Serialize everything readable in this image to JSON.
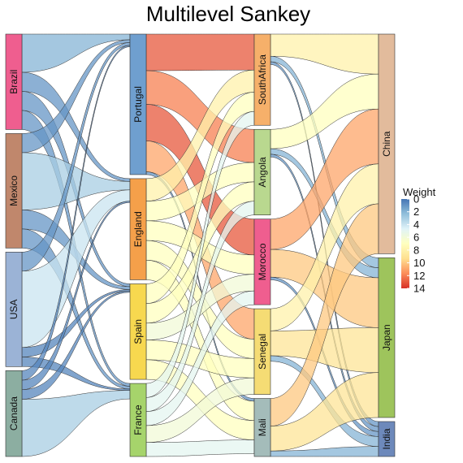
{
  "chart_data": {
    "type": "sankey",
    "title": "Multilevel Sankey",
    "legend": {
      "title": "Weight",
      "ticks": [
        "0",
        "2",
        "4",
        "6",
        "8",
        "10",
        "12",
        "14"
      ],
      "range": [
        0,
        14
      ],
      "colors": [
        "#4575b4",
        "#91bfdb",
        "#e0f3f8",
        "#ffffbf",
        "#fee090",
        "#fc8d59",
        "#d73027"
      ],
      "placement": "right"
    },
    "levels": [
      [
        "Brazil",
        "Mexico",
        "USA",
        "Canada"
      ],
      [
        "Portugal",
        "England",
        "Spain",
        "France"
      ],
      [
        "SouthAfrica",
        "Angola",
        "Morocco",
        "Senegal",
        "Mali"
      ],
      [
        "China",
        "Japan",
        "India"
      ]
    ],
    "node_colors": {
      "Brazil": "#ef5e8f",
      "Mexico": "#c0876c",
      "USA": "#9bb3d6",
      "Canada": "#8caea1",
      "Portugal": "#6f9fcf",
      "England": "#f5a04a",
      "Spain": "#f7d84f",
      "France": "#a6d46b",
      "SouthAfrica": "#f6b06a",
      "Angola": "#b9d88f",
      "Morocco": "#ef5e8f",
      "Senegal": "#f5dc74",
      "Mali": "#a4bcba",
      "China": "#e2bb9c",
      "Japan": "#9ec45c",
      "India": "#6d89bb"
    },
    "links": [
      {
        "source": "Brazil",
        "target": "Portugal",
        "value": 2
      },
      {
        "source": "Brazil",
        "target": "England",
        "value": 1
      },
      {
        "source": "Brazil",
        "target": "Spain",
        "value": 1
      },
      {
        "source": "Brazil",
        "target": "France",
        "value": 1
      },
      {
        "source": "Mexico",
        "target": "Portugal",
        "value": 1
      },
      {
        "source": "Mexico",
        "target": "England",
        "value": 3
      },
      {
        "source": "Mexico",
        "target": "Spain",
        "value": 1
      },
      {
        "source": "Mexico",
        "target": "France",
        "value": 1
      },
      {
        "source": "USA",
        "target": "Portugal",
        "value": 1
      },
      {
        "source": "USA",
        "target": "England",
        "value": 4
      },
      {
        "source": "USA",
        "target": "Spain",
        "value": 0.5
      },
      {
        "source": "USA",
        "target": "France",
        "value": 0.5
      },
      {
        "source": "Canada",
        "target": "Portugal",
        "value": 0.5
      },
      {
        "source": "Canada",
        "target": "England",
        "value": 0.5
      },
      {
        "source": "Canada",
        "target": "Spain",
        "value": 0.5
      },
      {
        "source": "Canada",
        "target": "France",
        "value": 3
      },
      {
        "source": "Portugal",
        "target": "SouthAfrica",
        "value": 13
      },
      {
        "source": "Portugal",
        "target": "Angola",
        "value": 12
      },
      {
        "source": "Portugal",
        "target": "Morocco",
        "value": 13
      },
      {
        "source": "Portugal",
        "target": "Senegal",
        "value": 11
      },
      {
        "source": "Portugal",
        "target": "Mali",
        "value": 1
      },
      {
        "source": "England",
        "target": "SouthAfrica",
        "value": 8
      },
      {
        "source": "England",
        "target": "Angola",
        "value": 7
      },
      {
        "source": "England",
        "target": "Morocco",
        "value": 7
      },
      {
        "source": "England",
        "target": "Senegal",
        "value": 7
      },
      {
        "source": "England",
        "target": "Mali",
        "value": 7
      },
      {
        "source": "Spain",
        "target": "SouthAfrica",
        "value": 7
      },
      {
        "source": "Spain",
        "target": "Angola",
        "value": 7
      },
      {
        "source": "Spain",
        "target": "Morocco",
        "value": 6
      },
      {
        "source": "Spain",
        "target": "Senegal",
        "value": 7
      },
      {
        "source": "Spain",
        "target": "Mali",
        "value": 7
      },
      {
        "source": "France",
        "target": "SouthAfrica",
        "value": 5
      },
      {
        "source": "France",
        "target": "Angola",
        "value": 5
      },
      {
        "source": "France",
        "target": "Morocco",
        "value": 5
      },
      {
        "source": "France",
        "target": "Senegal",
        "value": 6
      },
      {
        "source": "France",
        "target": "Mali",
        "value": 5
      },
      {
        "source": "SouthAfrica",
        "target": "China",
        "value": 8
      },
      {
        "source": "SouthAfrica",
        "target": "Japan",
        "value": 2
      },
      {
        "source": "SouthAfrica",
        "target": "India",
        "value": 1
      },
      {
        "source": "Angola",
        "target": "China",
        "value": 7
      },
      {
        "source": "Angola",
        "target": "Japan",
        "value": 2
      },
      {
        "source": "Angola",
        "target": "India",
        "value": 1
      },
      {
        "source": "Morocco",
        "target": "China",
        "value": 11
      },
      {
        "source": "Morocco",
        "target": "Japan",
        "value": 10
      },
      {
        "source": "Morocco",
        "target": "India",
        "value": 1
      },
      {
        "source": "Senegal",
        "target": "China",
        "value": 8
      },
      {
        "source": "Senegal",
        "target": "Japan",
        "value": 9
      },
      {
        "source": "Senegal",
        "target": "India",
        "value": 2
      },
      {
        "source": "Mali",
        "target": "China",
        "value": 10
      },
      {
        "source": "Mali",
        "target": "Japan",
        "value": 9
      },
      {
        "source": "Mali",
        "target": "India",
        "value": 2
      }
    ]
  }
}
